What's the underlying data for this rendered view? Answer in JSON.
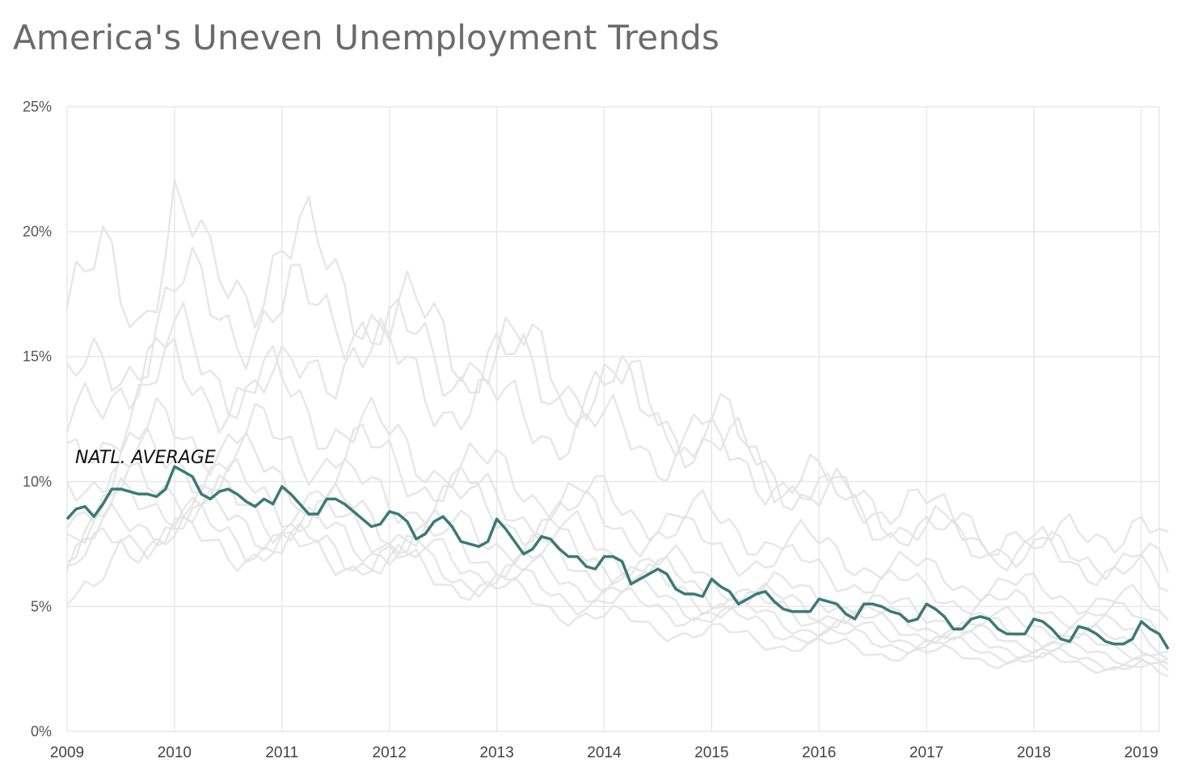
{
  "chart_data": {
    "type": "line",
    "title": "America's Uneven Unemployment Trends",
    "xlabel": "",
    "ylabel": "",
    "x_range": [
      "2009-01",
      "2019-03"
    ],
    "ylim": [
      0,
      25
    ],
    "y_ticks": [
      "0%",
      "5%",
      "10%",
      "15%",
      "20%",
      "25%"
    ],
    "x_ticks": [
      "2009",
      "2010",
      "2011",
      "2012",
      "2013",
      "2014",
      "2015",
      "2016",
      "2017",
      "2018",
      "2019"
    ],
    "grid": true,
    "annotation": {
      "text": "NATL. AVERAGE",
      "x": "2009-01",
      "y": 11.0
    },
    "highlight_color": "#3a7a79",
    "background_color": "#e3e3e3",
    "highlight": {
      "start": "2009-01",
      "values": [
        8.5,
        8.9,
        9.0,
        8.6,
        9.1,
        9.7,
        9.7,
        9.6,
        9.5,
        9.5,
        9.4,
        9.7,
        10.6,
        10.4,
        10.2,
        9.5,
        9.3,
        9.6,
        9.7,
        9.5,
        9.2,
        9.0,
        9.3,
        9.1,
        9.8,
        9.5,
        9.1,
        8.7,
        8.7,
        9.3,
        9.3,
        9.1,
        8.8,
        8.5,
        8.2,
        8.3,
        8.8,
        8.7,
        8.4,
        7.7,
        7.9,
        8.4,
        8.6,
        8.2,
        7.6,
        7.5,
        7.4,
        7.6,
        8.5,
        8.1,
        7.6,
        7.1,
        7.3,
        7.8,
        7.7,
        7.3,
        7.0,
        7.0,
        6.6,
        6.5,
        7.0,
        7.0,
        6.8,
        5.9,
        6.1,
        6.3,
        6.5,
        6.3,
        5.7,
        5.5,
        5.5,
        5.4,
        6.1,
        5.8,
        5.6,
        5.1,
        5.3,
        5.5,
        5.6,
        5.2,
        4.9,
        4.8,
        4.8,
        4.8,
        5.3,
        5.2,
        5.1,
        4.7,
        4.5,
        5.1,
        5.1,
        5.0,
        4.8,
        4.7,
        4.4,
        4.5,
        5.1,
        4.9,
        4.6,
        4.1,
        4.1,
        4.5,
        4.6,
        4.5,
        4.1,
        3.9,
        3.9,
        3.9,
        4.5,
        4.4,
        4.1,
        3.7,
        3.6,
        4.2,
        4.1,
        3.9,
        3.6,
        3.5,
        3.5,
        3.7,
        4.4,
        4.1,
        3.9,
        3.3
      ]
    },
    "background_series": [
      {
        "start": "2009-01",
        "anchors": [
          [
            0,
            17.0
          ],
          [
            2,
            17.3
          ],
          [
            4,
            18.3
          ],
          [
            8,
            17.2
          ],
          [
            12,
            21.0
          ],
          [
            16,
            17.6
          ],
          [
            24,
            19.2
          ],
          [
            32,
            18.0
          ],
          [
            36,
            16.5
          ],
          [
            48,
            15.2
          ],
          [
            60,
            14.0
          ],
          [
            72,
            11.5
          ],
          [
            84,
            9.5
          ],
          [
            96,
            8.3
          ],
          [
            108,
            7.3
          ],
          [
            120,
            8.5
          ],
          [
            123,
            7.0
          ]
        ]
      },
      {
        "start": "2009-01",
        "anchors": [
          [
            0,
            13.4
          ],
          [
            6,
            14.8
          ],
          [
            12,
            17.2
          ],
          [
            24,
            16.5
          ],
          [
            32,
            17.2
          ],
          [
            36,
            15.5
          ],
          [
            48,
            14.5
          ],
          [
            60,
            13.5
          ],
          [
            72,
            12.3
          ],
          [
            84,
            9.3
          ],
          [
            96,
            7.8
          ],
          [
            108,
            7.1
          ],
          [
            120,
            7.0
          ],
          [
            123,
            6.2
          ]
        ]
      },
      {
        "start": "2009-01",
        "anchors": [
          [
            0,
            11.6
          ],
          [
            6,
            14.5
          ],
          [
            12,
            15.2
          ],
          [
            24,
            13.5
          ],
          [
            32,
            15.8
          ],
          [
            36,
            14.4
          ],
          [
            48,
            12.8
          ],
          [
            60,
            11.9
          ],
          [
            72,
            11.0
          ],
          [
            84,
            9.8
          ],
          [
            96,
            8.8
          ],
          [
            108,
            7.3
          ],
          [
            120,
            6.2
          ],
          [
            123,
            5.5
          ]
        ]
      },
      {
        "start": "2009-01",
        "anchors": [
          [
            0,
            10.4
          ],
          [
            6,
            12.8
          ],
          [
            12,
            14.0
          ],
          [
            24,
            13.5
          ],
          [
            36,
            11.5
          ],
          [
            48,
            10.2
          ],
          [
            60,
            9.1
          ],
          [
            72,
            8.4
          ],
          [
            84,
            7.3
          ],
          [
            96,
            6.3
          ],
          [
            108,
            5.6
          ],
          [
            120,
            5.1
          ],
          [
            123,
            4.5
          ]
        ]
      },
      {
        "start": "2009-01",
        "anchors": [
          [
            0,
            9.6
          ],
          [
            6,
            11.2
          ],
          [
            12,
            12.0
          ],
          [
            24,
            11.5
          ],
          [
            36,
            10.8
          ],
          [
            48,
            9.1
          ],
          [
            60,
            8.4
          ],
          [
            72,
            7.4
          ],
          [
            84,
            6.4
          ],
          [
            96,
            5.6
          ],
          [
            108,
            4.9
          ],
          [
            120,
            4.5
          ],
          [
            123,
            3.9
          ]
        ]
      },
      {
        "start": "2009-01",
        "anchors": [
          [
            0,
            8.8
          ],
          [
            6,
            10.3
          ],
          [
            12,
            11.0
          ],
          [
            24,
            10.2
          ],
          [
            36,
            9.4
          ],
          [
            48,
            8.8
          ],
          [
            60,
            7.4
          ],
          [
            72,
            6.1
          ],
          [
            84,
            5.4
          ],
          [
            96,
            4.7
          ],
          [
            108,
            4.3
          ],
          [
            120,
            4.0
          ],
          [
            123,
            3.4
          ]
        ]
      },
      {
        "start": "2009-01",
        "anchors": [
          [
            0,
            8.2
          ],
          [
            6,
            9.4
          ],
          [
            12,
            10.0
          ],
          [
            24,
            9.3
          ],
          [
            36,
            8.3
          ],
          [
            48,
            7.8
          ],
          [
            60,
            6.9
          ],
          [
            72,
            5.6
          ],
          [
            84,
            4.9
          ],
          [
            96,
            4.3
          ],
          [
            108,
            3.9
          ],
          [
            120,
            3.6
          ],
          [
            123,
            3.0
          ]
        ]
      },
      {
        "start": "2009-01",
        "anchors": [
          [
            0,
            7.6
          ],
          [
            6,
            8.9
          ],
          [
            12,
            9.4
          ],
          [
            24,
            8.6
          ],
          [
            36,
            7.9
          ],
          [
            48,
            7.0
          ],
          [
            60,
            6.4
          ],
          [
            72,
            5.3
          ],
          [
            84,
            4.6
          ],
          [
            96,
            4.0
          ],
          [
            108,
            3.6
          ],
          [
            120,
            3.3
          ],
          [
            123,
            2.8
          ]
        ]
      },
      {
        "start": "2009-01",
        "anchors": [
          [
            0,
            7.0
          ],
          [
            6,
            8.2
          ],
          [
            12,
            8.6
          ],
          [
            24,
            8.2
          ],
          [
            36,
            7.4
          ],
          [
            48,
            6.5
          ],
          [
            60,
            5.8
          ],
          [
            72,
            4.9
          ],
          [
            84,
            4.2
          ],
          [
            96,
            3.7
          ],
          [
            108,
            3.3
          ],
          [
            120,
            3.0
          ],
          [
            123,
            2.6
          ]
        ]
      },
      {
        "start": "2009-01",
        "anchors": [
          [
            0,
            6.3
          ],
          [
            6,
            7.8
          ],
          [
            12,
            8.2
          ],
          [
            24,
            7.5
          ],
          [
            36,
            6.9
          ],
          [
            48,
            6.0
          ],
          [
            60,
            5.2
          ],
          [
            72,
            4.6
          ],
          [
            84,
            3.8
          ],
          [
            96,
            3.5
          ],
          [
            108,
            3.0
          ],
          [
            120,
            2.7
          ],
          [
            123,
            2.3
          ]
        ]
      },
      {
        "start": "2009-01",
        "anchors": [
          [
            0,
            5.0
          ],
          [
            3,
            5.4
          ],
          [
            6,
            7.8
          ],
          [
            12,
            7.6
          ],
          [
            24,
            7.2
          ],
          [
            36,
            6.8
          ],
          [
            48,
            5.6
          ],
          [
            60,
            4.5
          ],
          [
            72,
            3.9
          ],
          [
            84,
            3.4
          ],
          [
            96,
            3.1
          ],
          [
            108,
            2.8
          ],
          [
            120,
            2.6
          ],
          [
            123,
            2.1
          ]
        ]
      }
    ]
  }
}
